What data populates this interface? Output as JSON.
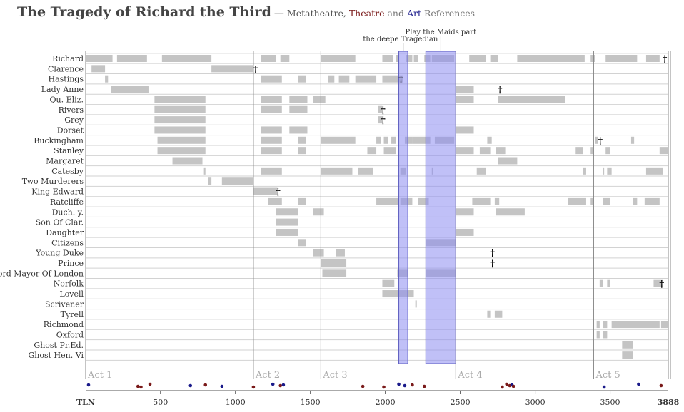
{
  "header": {
    "title": "The Tragedy of Richard the Third",
    "dash": "—",
    "sub_prefix": "Metatheatre,",
    "sub_theatre": "Theatre",
    "sub_and": "and",
    "sub_art": "Art",
    "sub_refs": "References"
  },
  "chart_data": {
    "type": "timeline",
    "title": "The Tragedy of Richard the Third",
    "xlabel": "TLN",
    "xlim": [
      1,
      3888
    ],
    "x_ticks": [
      500,
      1000,
      1500,
      2000,
      2500,
      3000,
      3500
    ],
    "x_tick_labels": [
      "500",
      "1000",
      "1500",
      "2000",
      "2500",
      "3000",
      "3500"
    ],
    "x_start_label": "TLN",
    "x_end_label": "3888",
    "acts": [
      {
        "label": "Act 1",
        "start": 1
      },
      {
        "label": "Act 2",
        "start": 1120
      },
      {
        "label": "Act 3",
        "start": 1570
      },
      {
        "label": "Act 4",
        "start": 2470
      },
      {
        "label": "Act 5",
        "start": 3390
      }
    ],
    "characters": [
      "Richard",
      "Clarence",
      "Hastings",
      "Lady Anne",
      "Qu. Eliz.",
      "Rivers",
      "Grey",
      "Dorset",
      "Buckingham",
      "Stanley",
      "Margaret",
      "Catesby",
      "Two Murderers",
      "King Edward",
      "Ratcliffe",
      "Duch. y.",
      "Son Of Clar.",
      "Daughter",
      "Citizens",
      "Young Duke",
      "Prince",
      "Lord Mayor Of London",
      "Norfolk",
      "Lovell",
      "Scrivener",
      "Tyrell",
      "Richmond",
      "Oxford",
      "Ghost Pr.Ed.",
      "Ghost Hen. Vi"
    ],
    "highlights": [
      {
        "label": "the deepe Tragedian",
        "start": 2090,
        "end": 2150
      },
      {
        "label": "Play the Maids part",
        "start": 2270,
        "end": 2470
      }
    ],
    "presence": [
      [
        [
          1,
          180
        ],
        [
          210,
          410
        ],
        [
          510,
          840
        ],
        [
          1170,
          1270
        ],
        [
          1300,
          1360
        ],
        [
          1570,
          1800
        ],
        [
          1980,
          2050
        ],
        [
          2070,
          2090
        ],
        [
          2140,
          2180
        ],
        [
          2190,
          2220
        ],
        [
          2260,
          2300
        ],
        [
          2310,
          2460
        ],
        [
          2560,
          2670
        ],
        [
          2700,
          2750
        ],
        [
          2880,
          3330
        ],
        [
          3370,
          3400
        ],
        [
          3470,
          3680
        ],
        [
          3740,
          3830
        ]
      ],
      [
        [
          40,
          130
        ],
        [
          840,
          1120
        ]
      ],
      [
        [
          130,
          150
        ],
        [
          1170,
          1310
        ],
        [
          1420,
          1470
        ],
        [
          1620,
          1660
        ],
        [
          1690,
          1760
        ],
        [
          1800,
          1940
        ],
        [
          1980,
          2120
        ]
      ],
      [
        [
          170,
          420
        ],
        [
          2470,
          2590
        ]
      ],
      [
        [
          460,
          800
        ],
        [
          1170,
          1310
        ],
        [
          1360,
          1480
        ],
        [
          1520,
          1600
        ],
        [
          2470,
          2590
        ],
        [
          2750,
          3200
        ]
      ],
      [
        [
          460,
          800
        ],
        [
          1170,
          1310
        ],
        [
          1360,
          1480
        ],
        [
          1950,
          1980
        ]
      ],
      [
        [
          460,
          800
        ],
        [
          1950,
          1980
        ]
      ],
      [
        [
          460,
          800
        ],
        [
          1170,
          1310
        ],
        [
          1360,
          1480
        ],
        [
          2470,
          2590
        ]
      ],
      [
        [
          480,
          800
        ],
        [
          1170,
          1310
        ],
        [
          1420,
          1470
        ],
        [
          1570,
          1800
        ],
        [
          1940,
          1970
        ],
        [
          1990,
          2020
        ],
        [
          2040,
          2070
        ],
        [
          2130,
          2180
        ],
        [
          2180,
          2300
        ],
        [
          2330,
          2460
        ],
        [
          2680,
          2710
        ],
        [
          3400,
          3420
        ],
        [
          3640,
          3660
        ]
      ],
      [
        [
          480,
          800
        ],
        [
          1170,
          1310
        ],
        [
          1420,
          1470
        ],
        [
          1880,
          1940
        ],
        [
          1990,
          2070
        ],
        [
          2470,
          2590
        ],
        [
          2630,
          2700
        ],
        [
          2740,
          2800
        ],
        [
          3270,
          3320
        ],
        [
          3370,
          3390
        ],
        [
          3470,
          3500
        ],
        [
          3830,
          3888
        ]
      ],
      [
        [
          580,
          780
        ],
        [
          2750,
          2880
        ]
      ],
      [
        [
          790,
          800
        ],
        [
          1170,
          1310
        ],
        [
          1570,
          1780
        ],
        [
          1820,
          1920
        ],
        [
          2100,
          2140
        ],
        [
          2310,
          2320
        ],
        [
          2610,
          2670
        ],
        [
          3320,
          3340
        ],
        [
          3450,
          3460
        ],
        [
          3480,
          3510
        ],
        [
          3740,
          3850
        ]
      ],
      [
        [
          820,
          840
        ],
        [
          910,
          1120
        ]
      ],
      [
        [
          1120,
          1280
        ]
      ],
      [
        [
          1220,
          1310
        ],
        [
          1420,
          1470
        ],
        [
          1940,
          2090
        ],
        [
          2100,
          2180
        ],
        [
          2220,
          2290
        ],
        [
          2580,
          2700
        ],
        [
          2730,
          2760
        ],
        [
          3220,
          3340
        ],
        [
          3370,
          3390
        ],
        [
          3450,
          3500
        ],
        [
          3650,
          3680
        ],
        [
          3730,
          3830
        ]
      ],
      [
        [
          1270,
          1420
        ],
        [
          1520,
          1590
        ],
        [
          2470,
          2590
        ],
        [
          2740,
          2930
        ]
      ],
      [
        [
          1270,
          1420
        ]
      ],
      [
        [
          1270,
          1420
        ],
        [
          2470,
          2590
        ]
      ],
      [
        [
          1420,
          1470
        ],
        [
          2270,
          2470
        ]
      ],
      [
        [
          1520,
          1590
        ],
        [
          1670,
          1730
        ]
      ],
      [
        [
          1570,
          1740
        ]
      ],
      [
        [
          1580,
          1740
        ],
        [
          2080,
          2150
        ],
        [
          2270,
          2470
        ]
      ],
      [
        [
          1980,
          2060
        ],
        [
          3430,
          3450
        ],
        [
          3480,
          3500
        ],
        [
          3790,
          3850
        ]
      ],
      [
        [
          1980,
          2190
        ]
      ],
      [
        [
          2200,
          2210
        ]
      ],
      [
        [
          2680,
          2700
        ],
        [
          2730,
          2780
        ]
      ],
      [
        [
          3410,
          3430
        ],
        [
          3450,
          3480
        ],
        [
          3510,
          3830
        ],
        [
          3840,
          3888
        ]
      ],
      [
        [
          3410,
          3430
        ],
        [
          3450,
          3480
        ]
      ],
      [
        [
          3580,
          3650
        ]
      ],
      [
        [
          3580,
          3650
        ]
      ]
    ],
    "deaths": [
      {
        "character": "Richard",
        "tln": 3850
      },
      {
        "character": "Clarence",
        "tln": 1120
      },
      {
        "character": "Hastings",
        "tln": 2090
      },
      {
        "character": "Lady Anne",
        "tln": 2750
      },
      {
        "character": "Rivers",
        "tln": 1970
      },
      {
        "character": "Grey",
        "tln": 1970
      },
      {
        "character": "Buckingham",
        "tln": 3420
      },
      {
        "character": "King Edward",
        "tln": 1270
      },
      {
        "character": "Young Duke",
        "tln": 2700
      },
      {
        "character": "Prince",
        "tln": 2700
      },
      {
        "character": "Norfolk",
        "tln": 3830
      }
    ],
    "death_glyph": "†",
    "reference_dots": [
      {
        "tln": 20,
        "kind": "art"
      },
      {
        "tln": 350,
        "kind": "theatre"
      },
      {
        "tln": 370,
        "kind": "theatre"
      },
      {
        "tln": 430,
        "kind": "theatre"
      },
      {
        "tln": 700,
        "kind": "art"
      },
      {
        "tln": 800,
        "kind": "theatre"
      },
      {
        "tln": 910,
        "kind": "art"
      },
      {
        "tln": 1120,
        "kind": "theatre"
      },
      {
        "tln": 1250,
        "kind": "art"
      },
      {
        "tln": 1300,
        "kind": "theatre"
      },
      {
        "tln": 1320,
        "kind": "art"
      },
      {
        "tln": 1850,
        "kind": "theatre"
      },
      {
        "tln": 1990,
        "kind": "theatre"
      },
      {
        "tln": 2090,
        "kind": "art"
      },
      {
        "tln": 2130,
        "kind": "art"
      },
      {
        "tln": 2180,
        "kind": "theatre"
      },
      {
        "tln": 2260,
        "kind": "theatre"
      },
      {
        "tln": 2780,
        "kind": "theatre"
      },
      {
        "tln": 2810,
        "kind": "theatre"
      },
      {
        "tln": 2830,
        "kind": "theatre"
      },
      {
        "tln": 2845,
        "kind": "art"
      },
      {
        "tln": 2855,
        "kind": "theatre"
      },
      {
        "tln": 3460,
        "kind": "art"
      },
      {
        "tln": 3690,
        "kind": "art"
      },
      {
        "tln": 3840,
        "kind": "theatre"
      }
    ],
    "colors": {
      "presence": "#c4c4c4",
      "highlight_fill": "#8c8cf0",
      "highlight_stroke": "#5c5cc0",
      "overlap": "#7a7ac8",
      "row_line": "#d2d2d2",
      "act_line": "#888888",
      "theatre": "#7a1a1a",
      "art": "#1a1a8a"
    }
  }
}
